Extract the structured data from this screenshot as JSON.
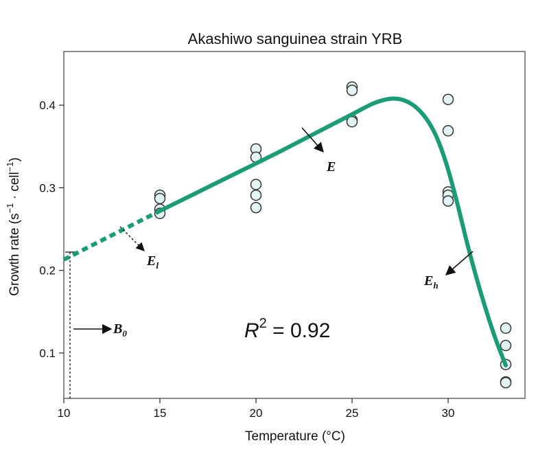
{
  "chart_data": {
    "type": "scatter",
    "title": "Akashiwo sanguinea strain YRB",
    "xlabel": "Temperature (°C)",
    "ylabel_parts": [
      "Growth rate (s",
      "−1",
      " · cell",
      "−1",
      ")"
    ],
    "xlim": [
      10,
      34
    ],
    "ylim": [
      0.045,
      0.465
    ],
    "x_ticks": [
      10,
      15,
      20,
      25,
      30
    ],
    "y_ticks": [
      0.1,
      0.2,
      0.3,
      0.4
    ],
    "grid": false,
    "points": [
      {
        "x": 15,
        "y": 0.291
      },
      {
        "x": 15,
        "y": 0.287
      },
      {
        "x": 15,
        "y": 0.274
      },
      {
        "x": 15,
        "y": 0.269
      },
      {
        "x": 20,
        "y": 0.347
      },
      {
        "x": 20,
        "y": 0.337
      },
      {
        "x": 20,
        "y": 0.304
      },
      {
        "x": 20,
        "y": 0.291
      },
      {
        "x": 20,
        "y": 0.276
      },
      {
        "x": 25,
        "y": 0.422
      },
      {
        "x": 25,
        "y": 0.418
      },
      {
        "x": 25,
        "y": 0.382
      },
      {
        "x": 25,
        "y": 0.38
      },
      {
        "x": 30,
        "y": 0.407
      },
      {
        "x": 30,
        "y": 0.369
      },
      {
        "x": 30,
        "y": 0.295
      },
      {
        "x": 30,
        "y": 0.291
      },
      {
        "x": 30,
        "y": 0.284
      },
      {
        "x": 33,
        "y": 0.13
      },
      {
        "x": 33,
        "y": 0.109
      },
      {
        "x": 33,
        "y": 0.086
      },
      {
        "x": 33,
        "y": 0.065
      },
      {
        "x": 33,
        "y": 0.064
      }
    ],
    "fit_curve_solid": [
      [
        15,
        0.272
      ],
      [
        17,
        0.295
      ],
      [
        19,
        0.318
      ],
      [
        21,
        0.341
      ],
      [
        23,
        0.365
      ],
      [
        25,
        0.389
      ],
      [
        26,
        0.401
      ],
      [
        26.6,
        0.406
      ],
      [
        27.2,
        0.408
      ],
      [
        27.8,
        0.405
      ],
      [
        28.4,
        0.396
      ],
      [
        29,
        0.379
      ],
      [
        29.5,
        0.356
      ],
      [
        30,
        0.322
      ],
      [
        30.5,
        0.279
      ],
      [
        31,
        0.232
      ],
      [
        31.5,
        0.189
      ],
      [
        32,
        0.15
      ],
      [
        32.5,
        0.115
      ],
      [
        33,
        0.085
      ]
    ],
    "fit_curve_dashed": [
      [
        10,
        0.213
      ],
      [
        15,
        0.272
      ]
    ],
    "colors": {
      "curve": "#1a9d77",
      "point_fill": "#e3f4f4",
      "point_stroke": "#333333",
      "frame": "#666666"
    },
    "annotations": {
      "E": "E",
      "El_main": "E",
      "El_sub": "l",
      "Eh_main": "E",
      "Eh_sub": "h",
      "B0_main": "B",
      "B0_sub": "0",
      "r2_label": "R",
      "r2_sup": "2",
      "r2_value": " = 0.92"
    }
  }
}
